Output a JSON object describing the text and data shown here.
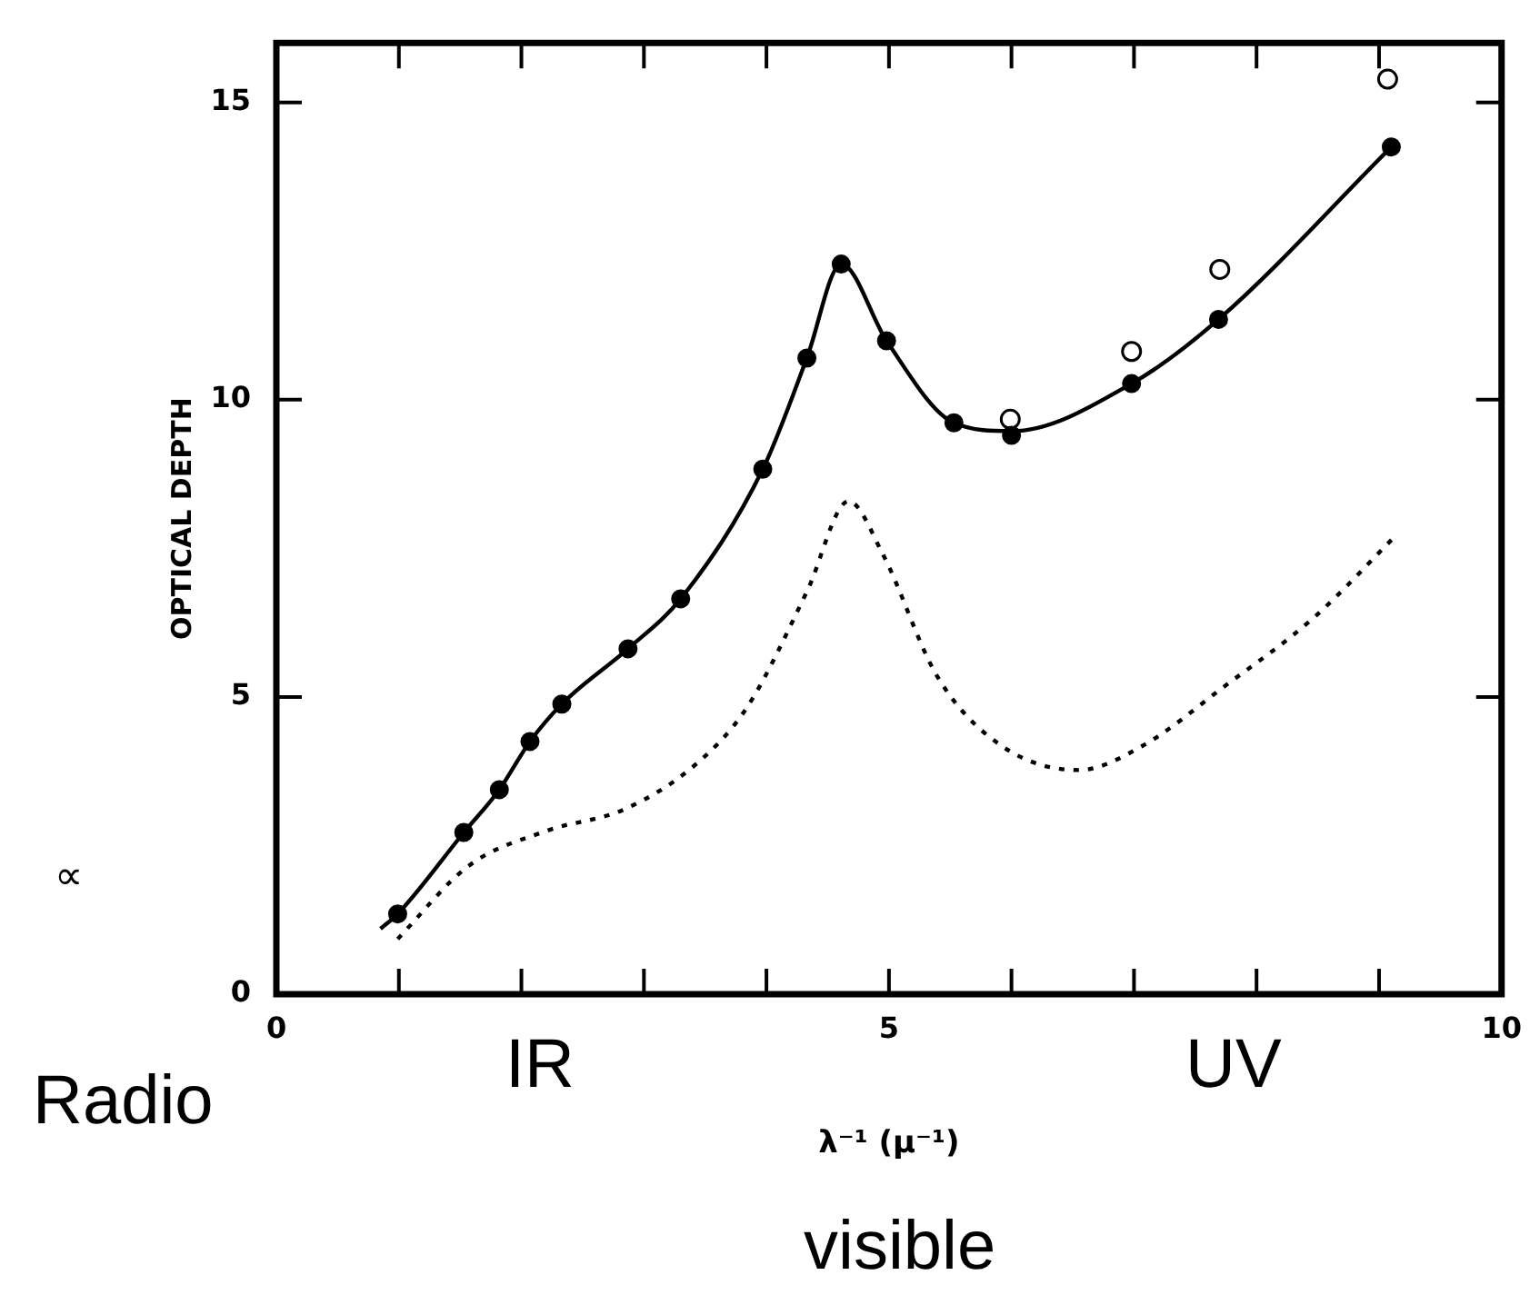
{
  "chart_data": {
    "type": "line",
    "xlabel": "λ⁻¹ (μ⁻¹)",
    "ylabel": "OPTICAL DEPTH",
    "xlim": [
      0,
      10
    ],
    "ylim": [
      0,
      16
    ],
    "xticks": [
      0,
      {
        "value": 1,
        "label": null
      },
      {
        "value": 2,
        "label": null
      },
      {
        "value": 3,
        "label": null
      },
      {
        "value": 4,
        "label": null
      },
      5,
      {
        "value": 6,
        "label": null
      },
      {
        "value": 7,
        "label": null
      },
      {
        "value": 8,
        "label": null
      },
      {
        "value": 9,
        "label": null
      },
      10
    ],
    "yticks": [
      0,
      5,
      10,
      15
    ],
    "grid": false,
    "legend": false,
    "series": [
      {
        "color": "#000000",
        "line_style": "solid",
        "marker": "none",
        "x": [
          0.85,
          0.99,
          1.53,
          1.82,
          2.07,
          2.33,
          2.87,
          3.3,
          3.97,
          4.33,
          4.61,
          4.98,
          5.53,
          6.0,
          6.98,
          7.69,
          9.1
        ],
        "values": [
          1.1,
          1.35,
          2.72,
          3.44,
          4.25,
          4.88,
          5.81,
          6.65,
          8.83,
          10.7,
          12.28,
          10.99,
          9.61,
          9.47,
          10.27,
          11.35,
          14.25
        ]
      },
      {
        "type": "scatter",
        "color": "#000000",
        "marker": "circle",
        "x": [
          0.99,
          1.53,
          1.82,
          2.07,
          2.33,
          2.87,
          3.3,
          3.97,
          4.33,
          4.61,
          4.98,
          5.53,
          6.0,
          6.98,
          7.69,
          9.1
        ],
        "values": [
          1.35,
          2.72,
          3.44,
          4.25,
          4.88,
          5.81,
          6.65,
          8.83,
          10.7,
          12.28,
          10.99,
          9.61,
          9.4,
          10.27,
          11.35,
          14.25
        ]
      },
      {
        "type": "scatter",
        "color": "#000000",
        "marker": "circle",
        "x": [
          5.99,
          6.98,
          7.7,
          9.07
        ],
        "values": [
          9.67,
          10.81,
          12.19,
          15.39
        ]
      },
      {
        "color": "#000000",
        "line_style": "dotted",
        "marker": "none",
        "x": [
          0.99,
          1.57,
          2.21,
          2.84,
          3.42,
          3.84,
          4.33,
          4.67,
          4.95,
          5.39,
          5.91,
          6.55,
          7.08,
          7.72,
          8.46,
          9.14
        ],
        "values": [
          0.93,
          2.16,
          2.75,
          3.11,
          3.86,
          4.82,
          6.77,
          8.29,
          7.4,
          5.36,
          4.19,
          3.77,
          4.19,
          5.15,
          6.32,
          7.72
        ]
      }
    ],
    "annotations": [
      "∝",
      "Radio",
      "IR",
      "UV",
      "visible"
    ]
  }
}
